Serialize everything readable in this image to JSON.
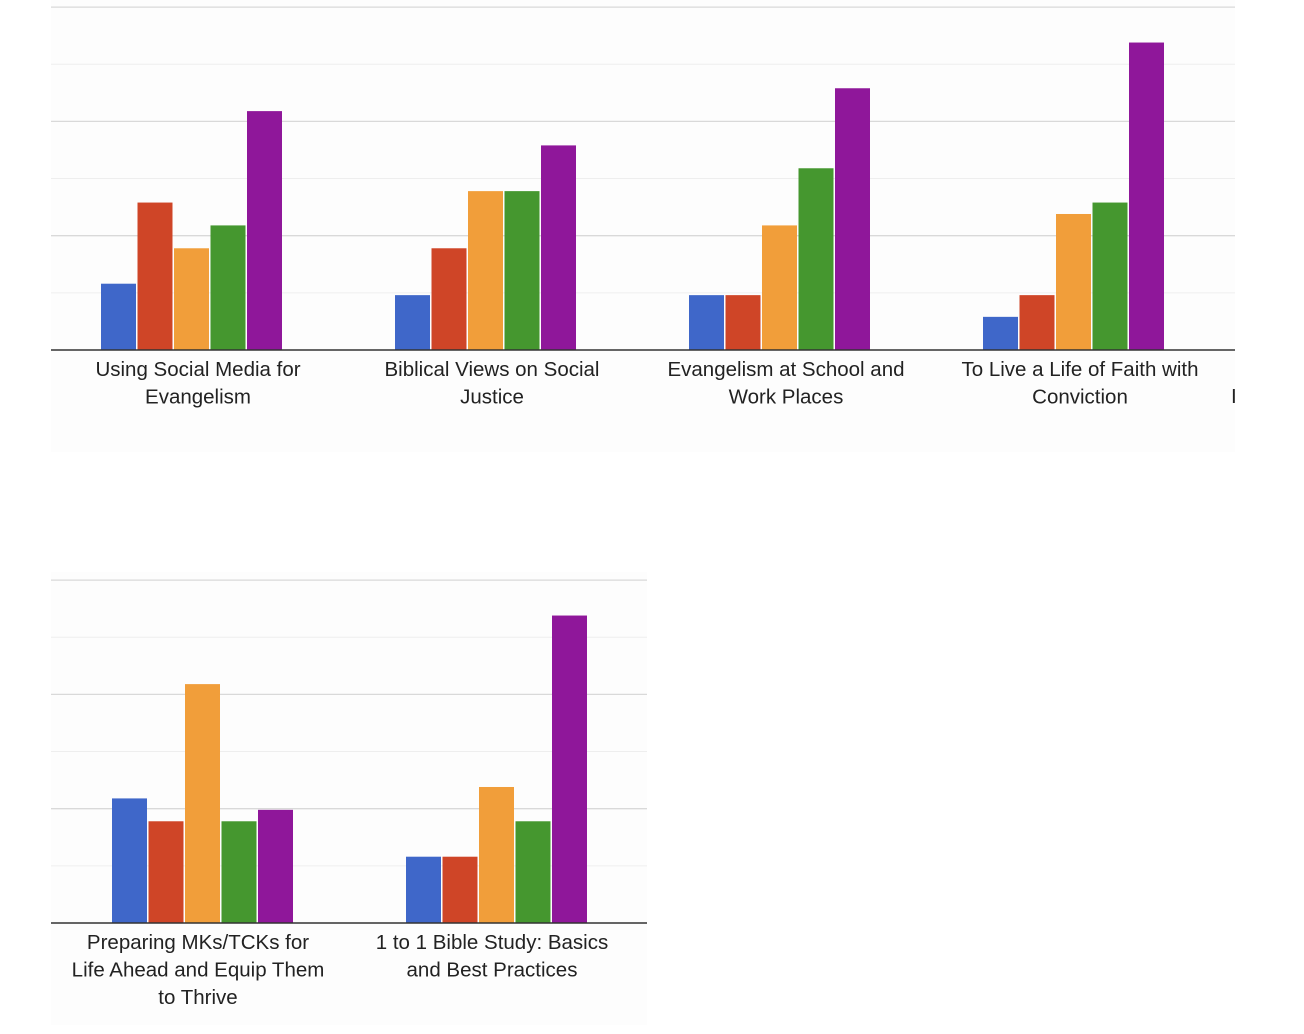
{
  "colors": {
    "gridline": "#d9d9d9",
    "minor_gridline": "#eeeeee",
    "axis": "#333333",
    "label": "#222222"
  },
  "chart_data": [
    {
      "type": "bar",
      "categories": [
        [
          "Using Social Media for",
          "Evangelism"
        ],
        [
          "Biblical Views on Social",
          "Justice"
        ],
        [
          "Evangelism at School and",
          "Work Places"
        ],
        [
          "To Live a Life of Faith with",
          "Conviction"
        ]
      ],
      "series": [
        {
          "color": "#3f67c9",
          "values": [
            5.8,
            4.8,
            4.8,
            2.9
          ]
        },
        {
          "color": "#cf4527",
          "values": [
            12.9,
            8.9,
            4.8,
            4.8
          ]
        },
        {
          "color": "#f19e3a",
          "values": [
            8.9,
            13.9,
            10.9,
            11.9
          ]
        },
        {
          "color": "#45972f",
          "values": [
            10.9,
            13.9,
            15.9,
            12.9
          ]
        },
        {
          "color": "#8f179a",
          "values": [
            20.9,
            17.9,
            22.9,
            26.9
          ]
        }
      ],
      "ylim": [
        0,
        30
      ],
      "major_gridlines": [
        0,
        10,
        20,
        30
      ],
      "minor_gridlines": [
        5,
        15,
        25
      ],
      "grid": true,
      "truncated_next_label": "I"
    },
    {
      "type": "bar",
      "categories": [
        [
          "Preparing MKs/TCKs for",
          "Life Ahead and Equip Them",
          "to Thrive"
        ],
        [
          "1 to 1 Bible Study: Basics",
          "and Best Practices"
        ]
      ],
      "series": [
        {
          "color": "#3f67c9",
          "values": [
            10.9,
            5.8
          ]
        },
        {
          "color": "#cf4527",
          "values": [
            8.9,
            5.8
          ]
        },
        {
          "color": "#f19e3a",
          "values": [
            20.9,
            11.9
          ]
        },
        {
          "color": "#45972f",
          "values": [
            8.9,
            8.9
          ]
        },
        {
          "color": "#8f179a",
          "values": [
            9.9,
            26.9
          ]
        }
      ],
      "ylim": [
        0,
        30
      ],
      "major_gridlines": [
        0,
        10,
        20,
        30
      ],
      "minor_gridlines": [
        5,
        15,
        25
      ],
      "grid": true
    }
  ]
}
